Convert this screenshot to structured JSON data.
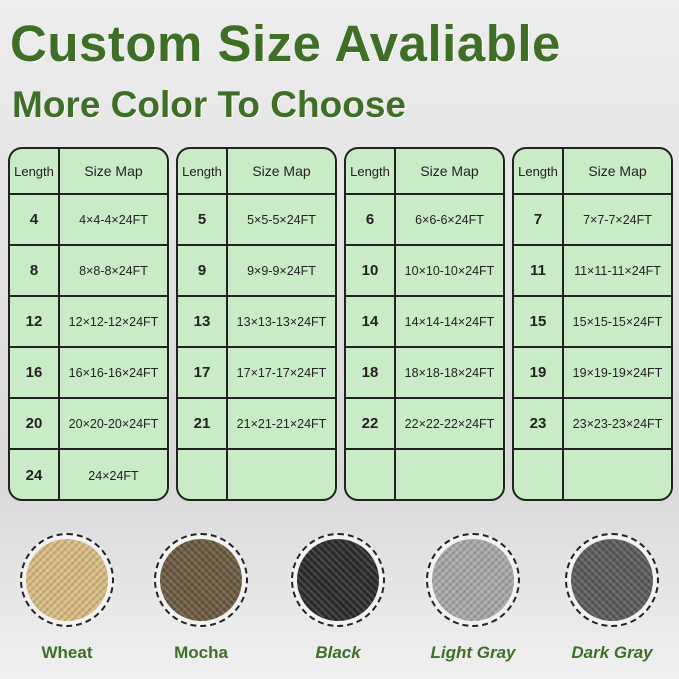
{
  "header": {
    "title": "Custom Size Avaliable",
    "subtitle": "More Color To Choose"
  },
  "table_headers": {
    "length": "Length",
    "size_map": "Size Map"
  },
  "panels": [
    {
      "rows": [
        [
          "4",
          "4×4-4×24FT"
        ],
        [
          "8",
          "8×8-8×24FT"
        ],
        [
          "12",
          "12×12-12×24FT"
        ],
        [
          "16",
          "16×16-16×24FT"
        ],
        [
          "20",
          "20×20-20×24FT"
        ],
        [
          "24",
          "24×24FT"
        ]
      ]
    },
    {
      "rows": [
        [
          "5",
          "5×5-5×24FT"
        ],
        [
          "9",
          "9×9-9×24FT"
        ],
        [
          "13",
          "13×13-13×24FT"
        ],
        [
          "17",
          "17×17-17×24FT"
        ],
        [
          "21",
          "21×21-21×24FT"
        ],
        [
          "",
          ""
        ]
      ]
    },
    {
      "rows": [
        [
          "6",
          "6×6-6×24FT"
        ],
        [
          "10",
          "10×10-10×24FT"
        ],
        [
          "14",
          "14×14-14×24FT"
        ],
        [
          "18",
          "18×18-18×24FT"
        ],
        [
          "22",
          "22×22-22×24FT"
        ],
        [
          "",
          ""
        ]
      ]
    },
    {
      "rows": [
        [
          "7",
          "7×7-7×24FT"
        ],
        [
          "11",
          "11×11-11×24FT"
        ],
        [
          "15",
          "15×15-15×24FT"
        ],
        [
          "19",
          "19×19-19×24FT"
        ],
        [
          "23",
          "23×23-23×24FT"
        ],
        [
          "",
          ""
        ]
      ]
    }
  ],
  "colors": [
    {
      "label": "Wheat",
      "hex": "#d9bc82",
      "italic": false
    },
    {
      "label": "Mocha",
      "hex": "#6b5a40",
      "italic": false
    },
    {
      "label": "Black",
      "hex": "#2c2c2c",
      "italic": true
    },
    {
      "label": "Light Gray",
      "hex": "#a8a8a8",
      "italic": true
    },
    {
      "label": "Dark Gray",
      "hex": "#5a5a5a",
      "italic": true
    }
  ]
}
